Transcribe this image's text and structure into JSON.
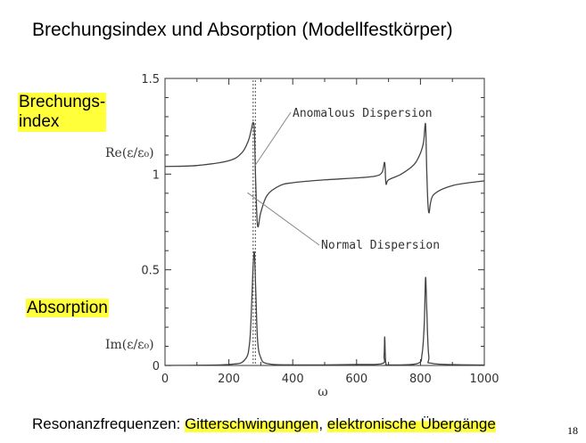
{
  "slide": {
    "title": "Brechungsindex und Absorption (Modellfestkörper)",
    "label_refraction": "Brechungs-\nindex",
    "label_absorption": "Absorption",
    "footer_prefix": "Resonanzfrequenzen: ",
    "footer_term1": "Gitterschwingungen",
    "footer_sep": ", ",
    "footer_term2": "elektronische Übergänge",
    "page_number": "18"
  },
  "chart_data": {
    "type": "line",
    "title": "",
    "xlabel": "ω",
    "xlim": [
      0,
      1000
    ],
    "ylim": [
      0,
      1.5
    ],
    "x_ticks": [
      "0",
      "200",
      "400",
      "600",
      "800",
      "1000"
    ],
    "y_ticks": [
      "0",
      "0.5",
      "1",
      "1.5"
    ],
    "grid": false,
    "series": [
      {
        "name": "Re(ε/ε0)",
        "x": [
          0,
          100,
          200,
          240,
          260,
          270,
          276,
          280,
          284,
          290,
          300,
          320,
          360,
          400,
          500,
          600,
          660,
          680,
          688,
          692,
          700,
          740,
          780,
          800,
          810,
          816,
          820,
          826,
          840,
          900,
          1000
        ],
        "y": [
          1.04,
          1.045,
          1.07,
          1.11,
          1.17,
          1.23,
          1.27,
          1.22,
          0.96,
          0.73,
          0.8,
          0.89,
          0.94,
          0.955,
          0.97,
          0.98,
          0.99,
          1.01,
          1.06,
          0.95,
          0.97,
          1.0,
          1.05,
          1.11,
          1.17,
          1.26,
          1.0,
          0.8,
          0.89,
          0.94,
          0.965
        ]
      },
      {
        "name": "Im(ε/ε0)",
        "x": [
          0,
          200,
          250,
          265,
          272,
          276,
          280,
          284,
          290,
          300,
          320,
          400,
          600,
          680,
          686,
          688,
          690,
          692,
          700,
          790,
          805,
          812,
          816,
          820,
          826,
          840,
          1000
        ],
        "y": [
          0,
          0.005,
          0.03,
          0.12,
          0.35,
          0.52,
          0.59,
          0.4,
          0.13,
          0.04,
          0.01,
          0.003,
          0.005,
          0.01,
          0.05,
          0.15,
          0.05,
          0.01,
          0.003,
          0.01,
          0.06,
          0.22,
          0.46,
          0.28,
          0.05,
          0.01,
          0.002
        ]
      }
    ],
    "ylabel_re": "Re(ε/ε₀)",
    "ylabel_im": "Im(ε/ε₀)",
    "vlines_x": [
      276,
      283
    ],
    "annotations": [
      {
        "text": "Anomalous Dispersion",
        "target_x": 280,
        "target_y": 1.04
      },
      {
        "text": "Normal Dispersion",
        "target_x": 370,
        "target_y": 0.94
      }
    ]
  }
}
